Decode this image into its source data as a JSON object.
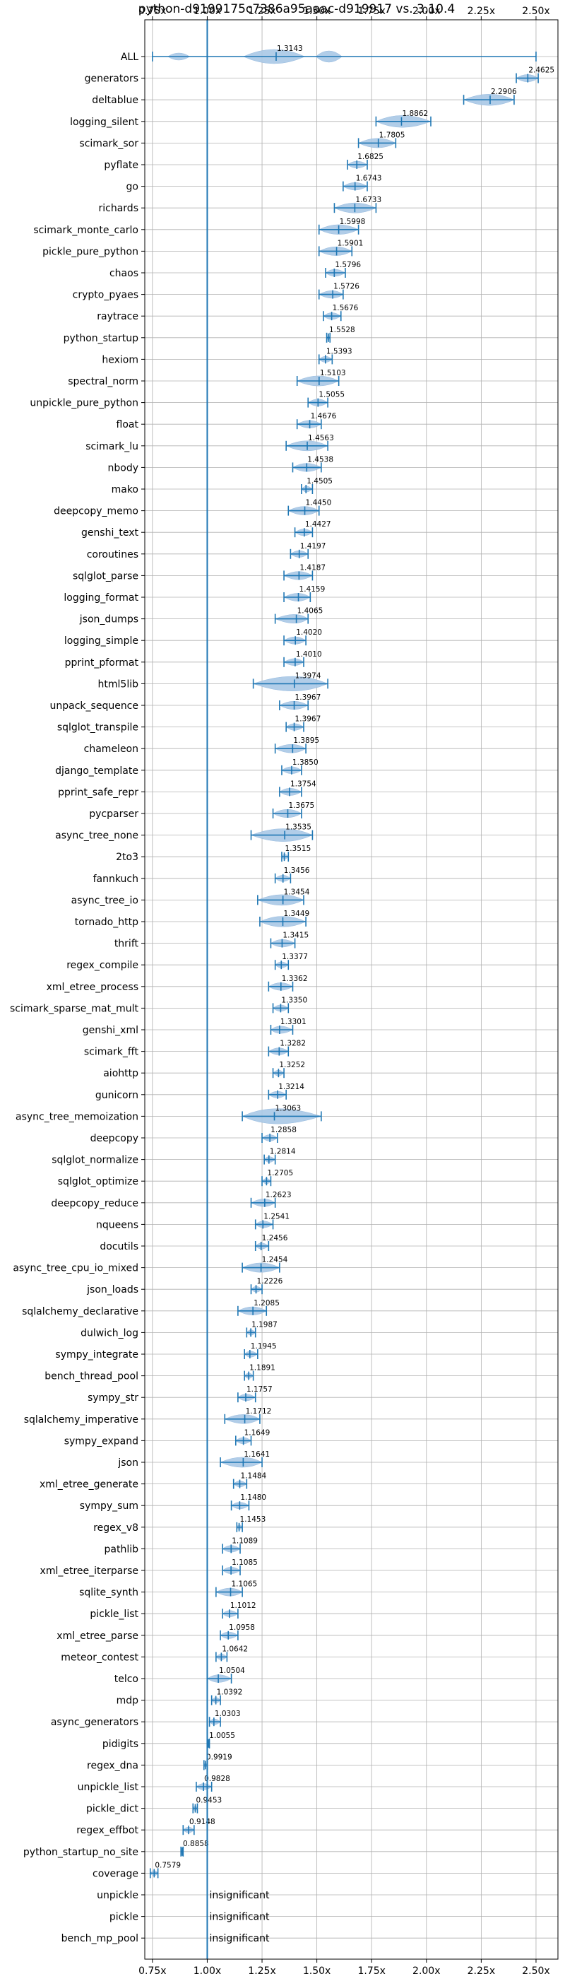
{
  "chart_data": {
    "type": "violin",
    "title": "python-d9199175c7386a95aaac-d919917 vs. 3.10.4",
    "x_ticks": [
      "0.75x",
      "1.00x",
      "1.25x",
      "1.50x",
      "1.75x",
      "2.00x",
      "2.25x",
      "2.50x"
    ],
    "x_tick_values": [
      0.75,
      1.0,
      1.25,
      1.5,
      1.75,
      2.0,
      2.25,
      2.5
    ],
    "xlim": [
      0.715,
      2.6
    ],
    "reference_line": 1.0,
    "grid": true,
    "insignificant_label": "insignificant",
    "benchmarks": [
      {
        "name": "ALL",
        "value": 1.3143,
        "label": "1.3143",
        "min": 0.75,
        "max": 2.5
      },
      {
        "name": "generators",
        "value": 2.4625,
        "label": "2.4625",
        "min": 2.41,
        "max": 2.51
      },
      {
        "name": "deltablue",
        "value": 2.2906,
        "label": "2.2906",
        "min": 2.17,
        "max": 2.4
      },
      {
        "name": "logging_silent",
        "value": 1.8862,
        "label": "1.8862",
        "min": 1.77,
        "max": 2.02
      },
      {
        "name": "scimark_sor",
        "value": 1.7805,
        "label": "1.7805",
        "min": 1.69,
        "max": 1.86
      },
      {
        "name": "pyflate",
        "value": 1.6825,
        "label": "1.6825",
        "min": 1.64,
        "max": 1.73
      },
      {
        "name": "go",
        "value": 1.6743,
        "label": "1.6743",
        "min": 1.62,
        "max": 1.73
      },
      {
        "name": "richards",
        "value": 1.6733,
        "label": "1.6733",
        "min": 1.58,
        "max": 1.77
      },
      {
        "name": "scimark_monte_carlo",
        "value": 1.5998,
        "label": "1.5998",
        "min": 1.51,
        "max": 1.69
      },
      {
        "name": "pickle_pure_python",
        "value": 1.5901,
        "label": "1.5901",
        "min": 1.51,
        "max": 1.66
      },
      {
        "name": "chaos",
        "value": 1.5796,
        "label": "1.5796",
        "min": 1.54,
        "max": 1.63
      },
      {
        "name": "crypto_pyaes",
        "value": 1.5726,
        "label": "1.5726",
        "min": 1.51,
        "max": 1.62
      },
      {
        "name": "raytrace",
        "value": 1.5676,
        "label": "1.5676",
        "min": 1.53,
        "max": 1.61
      },
      {
        "name": "python_startup",
        "value": 1.5528,
        "label": "1.5528",
        "min": 1.545,
        "max": 1.56
      },
      {
        "name": "hexiom",
        "value": 1.5393,
        "label": "1.5393",
        "min": 1.51,
        "max": 1.57
      },
      {
        "name": "spectral_norm",
        "value": 1.5103,
        "label": "1.5103",
        "min": 1.41,
        "max": 1.6
      },
      {
        "name": "unpickle_pure_python",
        "value": 1.5055,
        "label": "1.5055",
        "min": 1.46,
        "max": 1.55
      },
      {
        "name": "float",
        "value": 1.4676,
        "label": "1.4676",
        "min": 1.41,
        "max": 1.52
      },
      {
        "name": "scimark_lu",
        "value": 1.4563,
        "label": "1.4563",
        "min": 1.36,
        "max": 1.55
      },
      {
        "name": "nbody",
        "value": 1.4538,
        "label": "1.4538",
        "min": 1.39,
        "max": 1.52
      },
      {
        "name": "mako",
        "value": 1.4505,
        "label": "1.4505",
        "min": 1.43,
        "max": 1.48
      },
      {
        "name": "deepcopy_memo",
        "value": 1.445,
        "label": "1.4450",
        "min": 1.37,
        "max": 1.51
      },
      {
        "name": "genshi_text",
        "value": 1.4427,
        "label": "1.4427",
        "min": 1.4,
        "max": 1.48
      },
      {
        "name": "coroutines",
        "value": 1.4197,
        "label": "1.4197",
        "min": 1.38,
        "max": 1.46
      },
      {
        "name": "sqlglot_parse",
        "value": 1.4187,
        "label": "1.4187",
        "min": 1.35,
        "max": 1.48
      },
      {
        "name": "logging_format",
        "value": 1.4159,
        "label": "1.4159",
        "min": 1.35,
        "max": 1.47
      },
      {
        "name": "json_dumps",
        "value": 1.4065,
        "label": "1.4065",
        "min": 1.31,
        "max": 1.46
      },
      {
        "name": "logging_simple",
        "value": 1.402,
        "label": "1.4020",
        "min": 1.35,
        "max": 1.45
      },
      {
        "name": "pprint_pformat",
        "value": 1.401,
        "label": "1.4010",
        "min": 1.35,
        "max": 1.44
      },
      {
        "name": "html5lib",
        "value": 1.3974,
        "label": "1.3974",
        "min": 1.21,
        "max": 1.55
      },
      {
        "name": "unpack_sequence",
        "value": 1.3967,
        "label": "1.3967",
        "min": 1.33,
        "max": 1.46
      },
      {
        "name": "sqlglot_transpile",
        "value": 1.3967,
        "label": "1.3967",
        "min": 1.36,
        "max": 1.44
      },
      {
        "name": "chameleon",
        "value": 1.3895,
        "label": "1.3895",
        "min": 1.31,
        "max": 1.45
      },
      {
        "name": "django_template",
        "value": 1.385,
        "label": "1.3850",
        "min": 1.34,
        "max": 1.43
      },
      {
        "name": "pprint_safe_repr",
        "value": 1.3754,
        "label": "1.3754",
        "min": 1.33,
        "max": 1.43
      },
      {
        "name": "pycparser",
        "value": 1.3675,
        "label": "1.3675",
        "min": 1.3,
        "max": 1.43
      },
      {
        "name": "async_tree_none",
        "value": 1.3535,
        "label": "1.3535",
        "min": 1.2,
        "max": 1.48
      },
      {
        "name": "2to3",
        "value": 1.3515,
        "label": "1.3515",
        "min": 1.34,
        "max": 1.37
      },
      {
        "name": "fannkuch",
        "value": 1.3456,
        "label": "1.3456",
        "min": 1.31,
        "max": 1.38
      },
      {
        "name": "async_tree_io",
        "value": 1.3454,
        "label": "1.3454",
        "min": 1.23,
        "max": 1.44
      },
      {
        "name": "tornado_http",
        "value": 1.3449,
        "label": "1.3449",
        "min": 1.24,
        "max": 1.45
      },
      {
        "name": "thrift",
        "value": 1.3415,
        "label": "1.3415",
        "min": 1.29,
        "max": 1.4
      },
      {
        "name": "regex_compile",
        "value": 1.3377,
        "label": "1.3377",
        "min": 1.31,
        "max": 1.37
      },
      {
        "name": "xml_etree_process",
        "value": 1.3362,
        "label": "1.3362",
        "min": 1.28,
        "max": 1.39
      },
      {
        "name": "scimark_sparse_mat_mult",
        "value": 1.335,
        "label": "1.3350",
        "min": 1.3,
        "max": 1.37
      },
      {
        "name": "genshi_xml",
        "value": 1.3301,
        "label": "1.3301",
        "min": 1.29,
        "max": 1.39
      },
      {
        "name": "scimark_fft",
        "value": 1.3282,
        "label": "1.3282",
        "min": 1.28,
        "max": 1.37
      },
      {
        "name": "aiohttp",
        "value": 1.3252,
        "label": "1.3252",
        "min": 1.3,
        "max": 1.35
      },
      {
        "name": "gunicorn",
        "value": 1.3214,
        "label": "1.3214",
        "min": 1.28,
        "max": 1.36
      },
      {
        "name": "async_tree_memoization",
        "value": 1.3063,
        "label": "1.3063",
        "min": 1.16,
        "max": 1.52
      },
      {
        "name": "deepcopy",
        "value": 1.2858,
        "label": "1.2858",
        "min": 1.25,
        "max": 1.32
      },
      {
        "name": "sqlglot_normalize",
        "value": 1.2814,
        "label": "1.2814",
        "min": 1.26,
        "max": 1.31
      },
      {
        "name": "sqlglot_optimize",
        "value": 1.2705,
        "label": "1.2705",
        "min": 1.25,
        "max": 1.29
      },
      {
        "name": "deepcopy_reduce",
        "value": 1.2623,
        "label": "1.2623",
        "min": 1.2,
        "max": 1.31
      },
      {
        "name": "nqueens",
        "value": 1.2541,
        "label": "1.2541",
        "min": 1.22,
        "max": 1.3
      },
      {
        "name": "docutils",
        "value": 1.2456,
        "label": "1.2456",
        "min": 1.22,
        "max": 1.28
      },
      {
        "name": "async_tree_cpu_io_mixed",
        "value": 1.2454,
        "label": "1.2454",
        "min": 1.16,
        "max": 1.33
      },
      {
        "name": "json_loads",
        "value": 1.2226,
        "label": "1.2226",
        "min": 1.2,
        "max": 1.25
      },
      {
        "name": "sqlalchemy_declarative",
        "value": 1.2085,
        "label": "1.2085",
        "min": 1.14,
        "max": 1.27
      },
      {
        "name": "dulwich_log",
        "value": 1.1987,
        "label": "1.1987",
        "min": 1.18,
        "max": 1.22
      },
      {
        "name": "sympy_integrate",
        "value": 1.1945,
        "label": "1.1945",
        "min": 1.17,
        "max": 1.23
      },
      {
        "name": "bench_thread_pool",
        "value": 1.1891,
        "label": "1.1891",
        "min": 1.17,
        "max": 1.21
      },
      {
        "name": "sympy_str",
        "value": 1.1757,
        "label": "1.1757",
        "min": 1.14,
        "max": 1.22
      },
      {
        "name": "sqlalchemy_imperative",
        "value": 1.1712,
        "label": "1.1712",
        "min": 1.08,
        "max": 1.24
      },
      {
        "name": "sympy_expand",
        "value": 1.1649,
        "label": "1.1649",
        "min": 1.13,
        "max": 1.2
      },
      {
        "name": "json",
        "value": 1.1641,
        "label": "1.1641",
        "min": 1.06,
        "max": 1.25
      },
      {
        "name": "xml_etree_generate",
        "value": 1.1484,
        "label": "1.1484",
        "min": 1.12,
        "max": 1.18
      },
      {
        "name": "sympy_sum",
        "value": 1.148,
        "label": "1.1480",
        "min": 1.11,
        "max": 1.19
      },
      {
        "name": "regex_v8",
        "value": 1.1453,
        "label": "1.1453",
        "min": 1.135,
        "max": 1.16
      },
      {
        "name": "pathlib",
        "value": 1.1089,
        "label": "1.1089",
        "min": 1.07,
        "max": 1.15
      },
      {
        "name": "xml_etree_iterparse",
        "value": 1.1085,
        "label": "1.1085",
        "min": 1.07,
        "max": 1.15
      },
      {
        "name": "sqlite_synth",
        "value": 1.1065,
        "label": "1.1065",
        "min": 1.04,
        "max": 1.16
      },
      {
        "name": "pickle_list",
        "value": 1.1012,
        "label": "1.1012",
        "min": 1.07,
        "max": 1.14
      },
      {
        "name": "xml_etree_parse",
        "value": 1.0958,
        "label": "1.0958",
        "min": 1.06,
        "max": 1.14
      },
      {
        "name": "meteor_contest",
        "value": 1.0642,
        "label": "1.0642",
        "min": 1.04,
        "max": 1.09
      },
      {
        "name": "telco",
        "value": 1.0504,
        "label": "1.0504",
        "min": 1.0,
        "max": 1.11
      },
      {
        "name": "mdp",
        "value": 1.0392,
        "label": "1.0392",
        "min": 1.02,
        "max": 1.06
      },
      {
        "name": "async_generators",
        "value": 1.0303,
        "label": "1.0303",
        "min": 1.01,
        "max": 1.06
      },
      {
        "name": "pidigits",
        "value": 1.0055,
        "label": "1.0055",
        "min": 1.0,
        "max": 1.01
      },
      {
        "name": "regex_dna",
        "value": 0.9919,
        "label": "0.9919",
        "min": 0.985,
        "max": 1.0
      },
      {
        "name": "unpickle_list",
        "value": 0.9828,
        "label": "0.9828",
        "min": 0.95,
        "max": 1.02
      },
      {
        "name": "pickle_dict",
        "value": 0.9453,
        "label": "0.9453",
        "min": 0.935,
        "max": 0.955
      },
      {
        "name": "regex_effbot",
        "value": 0.9148,
        "label": "0.9148",
        "min": 0.89,
        "max": 0.94
      },
      {
        "name": "python_startup_no_site",
        "value": 0.8858,
        "label": "0.8858",
        "min": 0.88,
        "max": 0.89
      },
      {
        "name": "coverage",
        "value": 0.7579,
        "label": "0.7579",
        "min": 0.74,
        "max": 0.775
      },
      {
        "name": "unpickle",
        "value": null,
        "label": "insignificant"
      },
      {
        "name": "pickle",
        "value": null,
        "label": "insignificant"
      },
      {
        "name": "bench_mp_pool",
        "value": null,
        "label": "insignificant"
      }
    ]
  },
  "colors": {
    "violin_fill": "#a9c8e6",
    "violin_edge": "#8fb5dc",
    "errorbar": "#1f77b4",
    "ref_line": "#1f77b4",
    "grid": "#b0b0b0"
  }
}
